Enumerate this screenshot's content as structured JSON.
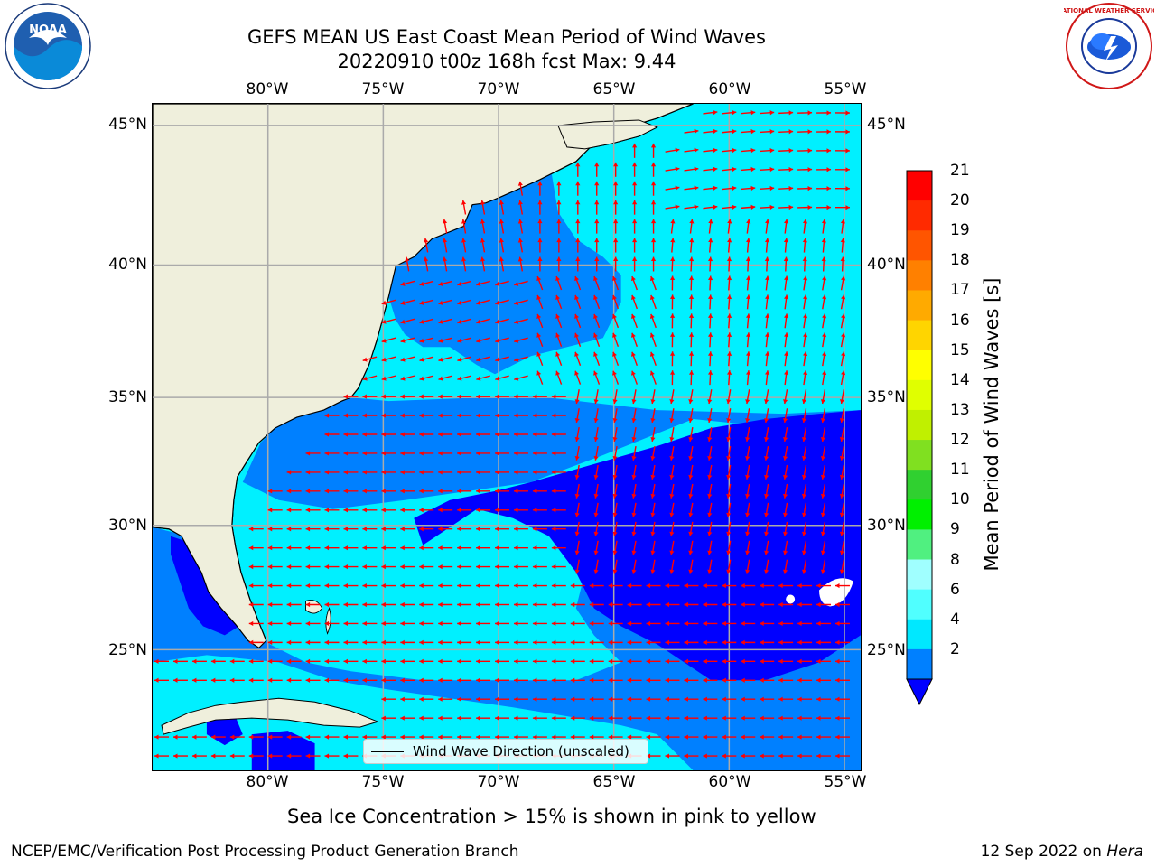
{
  "title": {
    "line1": "GEFS MEAN US East Coast Mean Period of Wind Waves",
    "line2": "20220910 t00z 168h fcst   Max: 9.44"
  },
  "logos": {
    "left": {
      "icon": "noaa-logo",
      "text": "NOAA"
    },
    "right": {
      "icon": "nws-logo",
      "text": "NATIONAL WEATHER SERVICE"
    }
  },
  "map": {
    "lon_ticks": [
      "80°W",
      "75°W",
      "70°W",
      "65°W",
      "60°W",
      "55°W"
    ],
    "lat_ticks": [
      "45°N",
      "40°N",
      "35°N",
      "30°N",
      "25°N"
    ],
    "legend_label": "Wind Wave Direction (unscaled)",
    "arrow_color": "#ff0000",
    "land_color": "#efefdc"
  },
  "colorbar": {
    "label": "Mean Period of Wind Waves [s]",
    "ticks": [
      "21",
      "20",
      "19",
      "18",
      "17",
      "16",
      "15",
      "14",
      "13",
      "12",
      "11",
      "10",
      "9",
      "8",
      "6",
      "4",
      "2"
    ],
    "colors": [
      "#ff0000",
      "#ff2a00",
      "#ff5500",
      "#ff8000",
      "#ffaa00",
      "#ffd500",
      "#ffff00",
      "#e0ff00",
      "#c0f000",
      "#80e020",
      "#30d030",
      "#00f000",
      "#50f080",
      "#a0ffff",
      "#50ffff",
      "#00e8ff",
      "#0080ff",
      "#0000ff"
    ]
  },
  "caption": "Sea Ice Concentration > 15% is shown in pink to yellow",
  "footer": {
    "left": "NCEP/EMC/Verification Post Processing Product Generation Branch",
    "right_date": "12 Sep 2022 on",
    "right_host": "Hera"
  }
}
